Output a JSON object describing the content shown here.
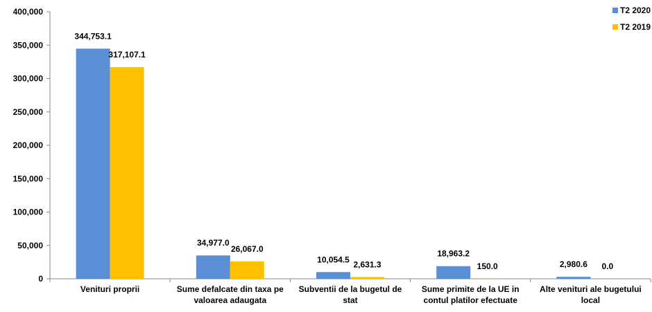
{
  "chart_data": {
    "type": "bar",
    "categories": [
      [
        "Venituri proprii"
      ],
      [
        "Sume defalcate din taxa pe",
        "valoarea adaugata"
      ],
      [
        "Subventii de la bugetul de",
        "stat"
      ],
      [
        "Sume primite de la UE in",
        "contul platilor efectuate"
      ],
      [
        "Alte venituri ale bugetului",
        "local"
      ]
    ],
    "series": [
      {
        "name": "T2 2020",
        "color": "#5B8FD5",
        "values": [
          344753.1,
          34977.0,
          10054.5,
          18963.2,
          2980.6
        ],
        "labels": [
          "344,753.1",
          "34,977.0",
          "10,054.5",
          "18,963.2",
          "2,980.6"
        ]
      },
      {
        "name": "T2 2019",
        "color": "#FFC000",
        "values": [
          317107.1,
          26067.0,
          2631.3,
          150.0,
          0.0
        ],
        "labels": [
          "317,107.1",
          "26,067.0",
          "2,631.3",
          "150.0",
          "0.0"
        ]
      }
    ],
    "ylim": [
      0,
      400000
    ],
    "yticks": [
      0,
      50000,
      100000,
      150000,
      200000,
      250000,
      300000,
      350000,
      400000
    ],
    "ytick_labels": [
      "0",
      "50,000",
      "100,000",
      "150,000",
      "200,000",
      "250,000",
      "300,000",
      "350,000",
      "400,000"
    ],
    "grid": false,
    "legend_position": "top-right",
    "title": "",
    "xlabel": "",
    "ylabel": ""
  }
}
